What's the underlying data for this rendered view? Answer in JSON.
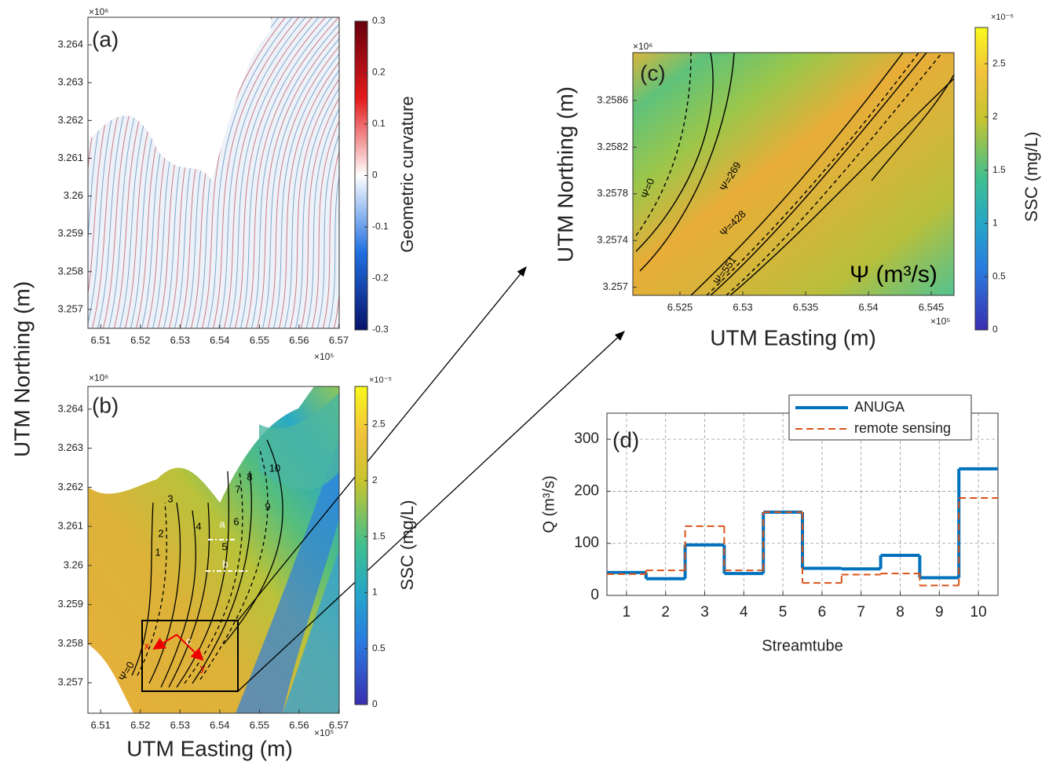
{
  "chart_data": [
    {
      "type": "map",
      "panel_label": "(a)",
      "colormap": "curvature",
      "xlim": [
        6.5068,
        6.5701
      ],
      "xticks": [
        6.51,
        6.52,
        6.53,
        6.54,
        6.55,
        6.56,
        6.57
      ],
      "x_exponent": "×10⁵",
      "ylim": [
        3.2565,
        3.26473
      ],
      "yticks": [
        3.257,
        3.258,
        3.259,
        3.26,
        3.261,
        3.262,
        3.263,
        3.264
      ],
      "y_exponent": "×10⁶",
      "colorbar": {
        "label": "Geometric curvature",
        "lim": [
          -0.3,
          0.3
        ],
        "ticks": [
          -0.3,
          -0.2,
          -0.1,
          0,
          0.1,
          0.2,
          0.3
        ]
      }
    },
    {
      "type": "map",
      "panel_label": "(b)",
      "colormap": "ssc",
      "xlabel": "UTM Easting (m)",
      "ylabel": "UTM Northing (m)",
      "xlim": [
        6.5068,
        6.5701
      ],
      "xticks": [
        6.51,
        6.52,
        6.53,
        6.54,
        6.55,
        6.56,
        6.57
      ],
      "x_exponent": "×10⁵",
      "ylim": [
        3.25622,
        3.26458
      ],
      "yticks": [
        3.257,
        3.258,
        3.259,
        3.26,
        3.261,
        3.262,
        3.263,
        3.264
      ],
      "y_exponent": "×10⁶",
      "colorbar": {
        "label": "SSC (mg/L)",
        "lim": [
          0,
          2.84
        ],
        "ticks": [
          0,
          0.5,
          1,
          1.5,
          2,
          2.5
        ],
        "exponent": "×10⁻⁵"
      },
      "annotations": [
        "1",
        "2",
        "3",
        "4",
        "5",
        "6",
        "7",
        "8",
        "9",
        "10",
        "a",
        "b",
        "c",
        "x",
        "y",
        "Ψ=0"
      ]
    },
    {
      "type": "map",
      "panel_label": "(c)",
      "colormap": "ssc-zoom",
      "xlabel": "UTM Easting (m)",
      "ylabel": "UTM Northing (m)",
      "xlim": [
        6.52125,
        6.54681
      ],
      "xticks": [
        6.525,
        6.53,
        6.535,
        6.54,
        6.545
      ],
      "x_exponent": "×10⁵",
      "ylim": [
        3.25693,
        3.25901
      ],
      "yticks": [
        3.257,
        3.2574,
        3.2578,
        3.2582,
        3.2586
      ],
      "y_exponent": "×10⁶",
      "colorbar": {
        "label": "SSC (mg/L)",
        "lim": [
          0,
          2.84
        ],
        "ticks": [
          0,
          0.5,
          1,
          1.5,
          2,
          2.5
        ],
        "exponent": "×10⁻⁵"
      },
      "annotations": [
        "Ψ=0",
        "Ψ=269",
        "Ψ=428",
        "Ψ=551",
        "Ψ (m³/s)"
      ]
    },
    {
      "type": "step",
      "panel_label": "(d)",
      "xlabel": "Streamtube",
      "ylabel": "Q (m³/s)",
      "x": [
        1,
        2,
        3,
        4,
        5,
        6,
        7,
        8,
        9,
        10
      ],
      "xlim": [
        0.5,
        10.5
      ],
      "xticks": [
        1,
        2,
        3,
        4,
        5,
        6,
        7,
        8,
        9,
        10
      ],
      "ylim": [
        0,
        350
      ],
      "yticks": [
        0,
        100,
        200,
        300
      ],
      "grid": true,
      "legend": "top-right",
      "series": [
        {
          "name": "ANUGA",
          "color": "#0072bd",
          "style": "solid",
          "values": [
            44,
            32,
            97,
            42,
            160,
            52,
            51,
            77,
            34,
            243
          ]
        },
        {
          "name": "remote sensing",
          "color": "#d95319",
          "style": "dashed",
          "values": [
            41,
            48,
            133,
            48,
            160,
            24,
            40,
            42,
            19,
            187
          ]
        }
      ]
    }
  ]
}
